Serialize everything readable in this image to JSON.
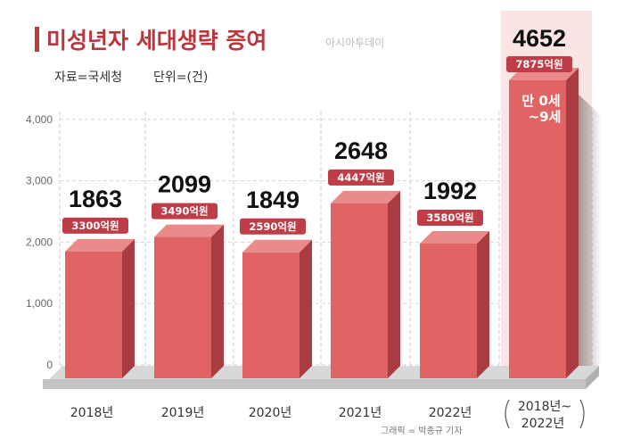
{
  "chart_data": {
    "type": "bar",
    "title": "미성년자 세대생략 증여",
    "source": "자료=국세청",
    "unit": "단위=(건)",
    "brand": "아시아투데이",
    "credit": "그래픽 = 박종규 기자",
    "categories": [
      "2018년",
      "2019년",
      "2020년",
      "2021년",
      "2022년"
    ],
    "values": [
      1863,
      2099,
      1849,
      2648,
      1992
    ],
    "value_labels": [
      "1863",
      "2099",
      "1849",
      "2648",
      "1992"
    ],
    "amounts": [
      "3300억원",
      "3490억원",
      "2590억원",
      "4447억원",
      "3580억원"
    ],
    "total": {
      "category_line1": "2018년~",
      "category_line2": "2022년",
      "value": 4652,
      "value_label": "4652",
      "amount": "7875억원",
      "age_line1": "만 0세",
      "age_line2": "~9세"
    },
    "yticks": [
      "0",
      "1,000",
      "2,000",
      "3,000",
      "4,000"
    ],
    "ylim": [
      0,
      4652
    ],
    "grid": true,
    "bar_color": "#e06464"
  }
}
